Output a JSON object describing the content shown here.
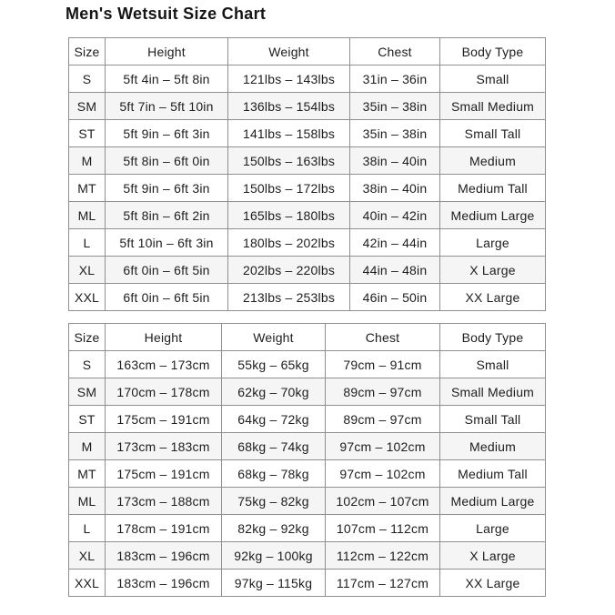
{
  "page_title": "Men's Wetsuit Size Chart",
  "colors": {
    "text": "#1d1d1d",
    "table_border": "#8f8f8f",
    "row_stripe": "#f5f5f5",
    "background": "#ffffff"
  },
  "tables": [
    {
      "name": "imperial",
      "headers": [
        "Size",
        "Height",
        "Weight",
        "Chest",
        "Body Type"
      ],
      "rows": [
        [
          "S",
          "5ft 4in – 5ft 8in",
          "121lbs – 143lbs",
          "31in – 36in",
          "Small"
        ],
        [
          "SM",
          "5ft 7in – 5ft 10in",
          "136lbs – 154lbs",
          "35in – 38in",
          "Small Medium"
        ],
        [
          "ST",
          "5ft 9in – 6ft 3in",
          "141lbs – 158lbs",
          "35in – 38in",
          "Small Tall"
        ],
        [
          "M",
          "5ft 8in – 6ft 0in",
          "150lbs – 163lbs",
          "38in – 40in",
          "Medium"
        ],
        [
          "MT",
          "5ft 9in – 6ft 3in",
          "150lbs – 172lbs",
          "38in – 40in",
          "Medium Tall"
        ],
        [
          "ML",
          "5ft 8in – 6ft 2in",
          "165lbs – 180lbs",
          "40in – 42in",
          "Medium Large"
        ],
        [
          "L",
          "5ft 10in – 6ft 3in",
          "180lbs – 202lbs",
          "42in – 44in",
          "Large"
        ],
        [
          "XL",
          "6ft 0in – 6ft 5in",
          "202lbs – 220lbs",
          "44in – 48in",
          "X Large"
        ],
        [
          "XXL",
          "6ft 0in – 6ft 5in",
          "213lbs – 253lbs",
          "46in – 50in",
          "XX Large"
        ]
      ]
    },
    {
      "name": "metric",
      "headers": [
        "Size",
        "Height",
        "Weight",
        "Chest",
        "Body Type"
      ],
      "rows": [
        [
          "S",
          "163cm – 173cm",
          "55kg – 65kg",
          "79cm – 91cm",
          "Small"
        ],
        [
          "SM",
          "170cm – 178cm",
          "62kg – 70kg",
          "89cm – 97cm",
          "Small Medium"
        ],
        [
          "ST",
          "175cm – 191cm",
          "64kg – 72kg",
          "89cm – 97cm",
          "Small Tall"
        ],
        [
          "M",
          "173cm – 183cm",
          "68kg – 74kg",
          "97cm – 102cm",
          "Medium"
        ],
        [
          "MT",
          "175cm – 191cm",
          "68kg – 78kg",
          "97cm – 102cm",
          "Medium Tall"
        ],
        [
          "ML",
          "173cm – 188cm",
          "75kg – 82kg",
          "102cm – 107cm",
          "Medium Large"
        ],
        [
          "L",
          "178cm – 191cm",
          "82kg – 92kg",
          "107cm – 112cm",
          "Large"
        ],
        [
          "XL",
          "183cm – 196cm",
          "92kg – 100kg",
          "112cm – 122cm",
          "X Large"
        ],
        [
          "XXL",
          "183cm – 196cm",
          "97kg – 115kg",
          "117cm – 127cm",
          "XX Large"
        ]
      ]
    }
  ]
}
